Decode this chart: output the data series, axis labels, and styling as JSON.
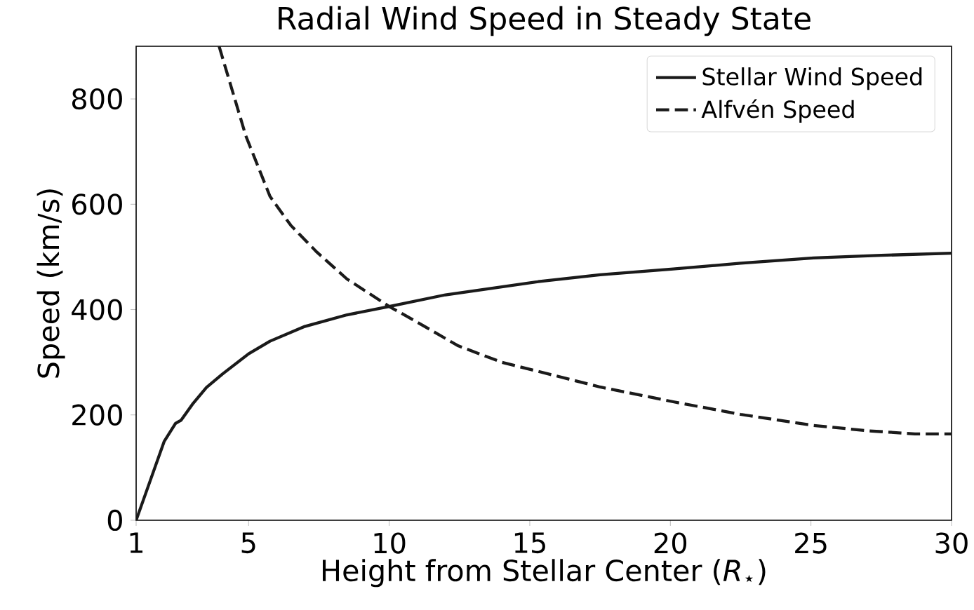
{
  "chart_data": {
    "type": "line",
    "title": "Radial Wind Speed in Steady State",
    "xlabel": "Height from Stellar Center (*R*$_{⋆}$)",
    "ylabel": "Speed (km/s)",
    "xlim": [
      1,
      30
    ],
    "ylim": [
      0,
      900
    ],
    "xticks": [
      1,
      5,
      10,
      15,
      20,
      25,
      30
    ],
    "yticks": [
      0,
      200,
      400,
      600,
      800
    ],
    "grid": false,
    "legend": "top right",
    "marker": "none",
    "series": [
      {
        "name": "Stellar Wind Speed",
        "color": "#1a1a1a",
        "line_style": "solid",
        "x": [
          1,
          1.5,
          2,
          2.4,
          2.6,
          3,
          3.5,
          4.08,
          5,
          5.76,
          7,
          8.5,
          10,
          12,
          15.3,
          17.5,
          20.1,
          22.5,
          25.1,
          27.5,
          30
        ],
        "values": [
          0,
          75,
          150,
          184,
          190,
          220,
          252,
          278,
          316,
          340,
          368,
          390,
          406,
          428,
          453,
          466,
          477,
          488,
          498,
          503,
          507
        ]
      },
      {
        "name": "Alfvén Speed",
        "color": "#1a1a1a",
        "line_style": "dashed",
        "x": [
          3.95,
          4.9,
          5.76,
          6.5,
          7.43,
          8.5,
          10,
          11,
          12.46,
          14,
          15.8,
          17.5,
          20.1,
          22.5,
          25.1,
          27,
          28.7,
          30
        ],
        "values": [
          900,
          730,
          615,
          560,
          509,
          458,
          406,
          376,
          331,
          300,
          276,
          253,
          225,
          201,
          180,
          170,
          164,
          164
        ]
      }
    ]
  }
}
